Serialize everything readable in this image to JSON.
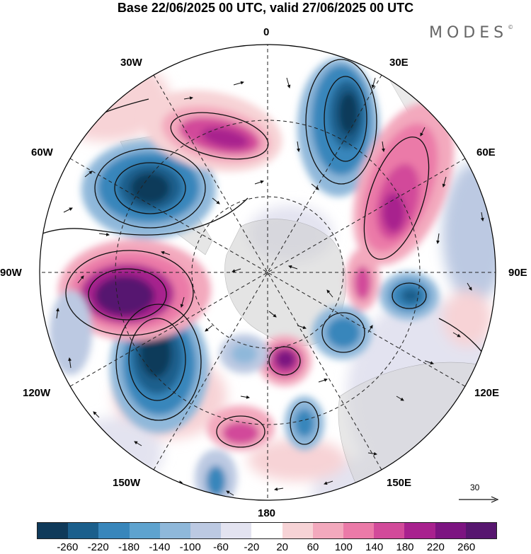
{
  "title": "Base 22/06/2025 00 UTC, valid 27/06/2025 00 UTC",
  "brand": "MODES",
  "brand_mark": "©",
  "longitude_labels": {
    "lon_0": "0",
    "lon_30e": "30E",
    "lon_60e": "60E",
    "lon_90e": "90E",
    "lon_120e": "120E",
    "lon_150e": "150E",
    "lon_180": "180",
    "lon_150w": "150W",
    "lon_120w": "120W",
    "lon_90w": "90W",
    "lon_60w": "60W",
    "lon_30w": "30W"
  },
  "reference_vector": {
    "label": "30"
  },
  "colorbar": {
    "colors": [
      "#0f3a5a",
      "#1b5f8c",
      "#3886bb",
      "#5ea3cf",
      "#8fb8da",
      "#bcc9e2",
      "#e3e3f0",
      "#ffffff",
      "#f7d3d6",
      "#f3a9bd",
      "#eb7aa8",
      "#d24a9a",
      "#a8218e",
      "#7c1481",
      "#57166f"
    ],
    "tick_labels": [
      "-260",
      "-220",
      "-180",
      "-140",
      "-100",
      "-60",
      "-20",
      "20",
      "60",
      "100",
      "140",
      "180",
      "220",
      "260"
    ]
  },
  "anomaly_centers": [
    {
      "lon": "30E",
      "sign": "negative",
      "magnitude": 260
    },
    {
      "lon": "60W",
      "sign": "negative",
      "magnitude": 260
    },
    {
      "lon": "120W",
      "sign": "negative",
      "magnitude": 260
    },
    {
      "lon": "90W",
      "sign": "positive",
      "magnitude": 260
    },
    {
      "lon": "60E",
      "sign": "positive",
      "magnitude": 220
    },
    {
      "lon": "30W",
      "sign": "positive",
      "magnitude": 220
    },
    {
      "lon": "180",
      "sign": "positive",
      "magnitude": 220
    },
    {
      "lon": "90E",
      "sign": "negative",
      "magnitude": 180
    }
  ]
}
